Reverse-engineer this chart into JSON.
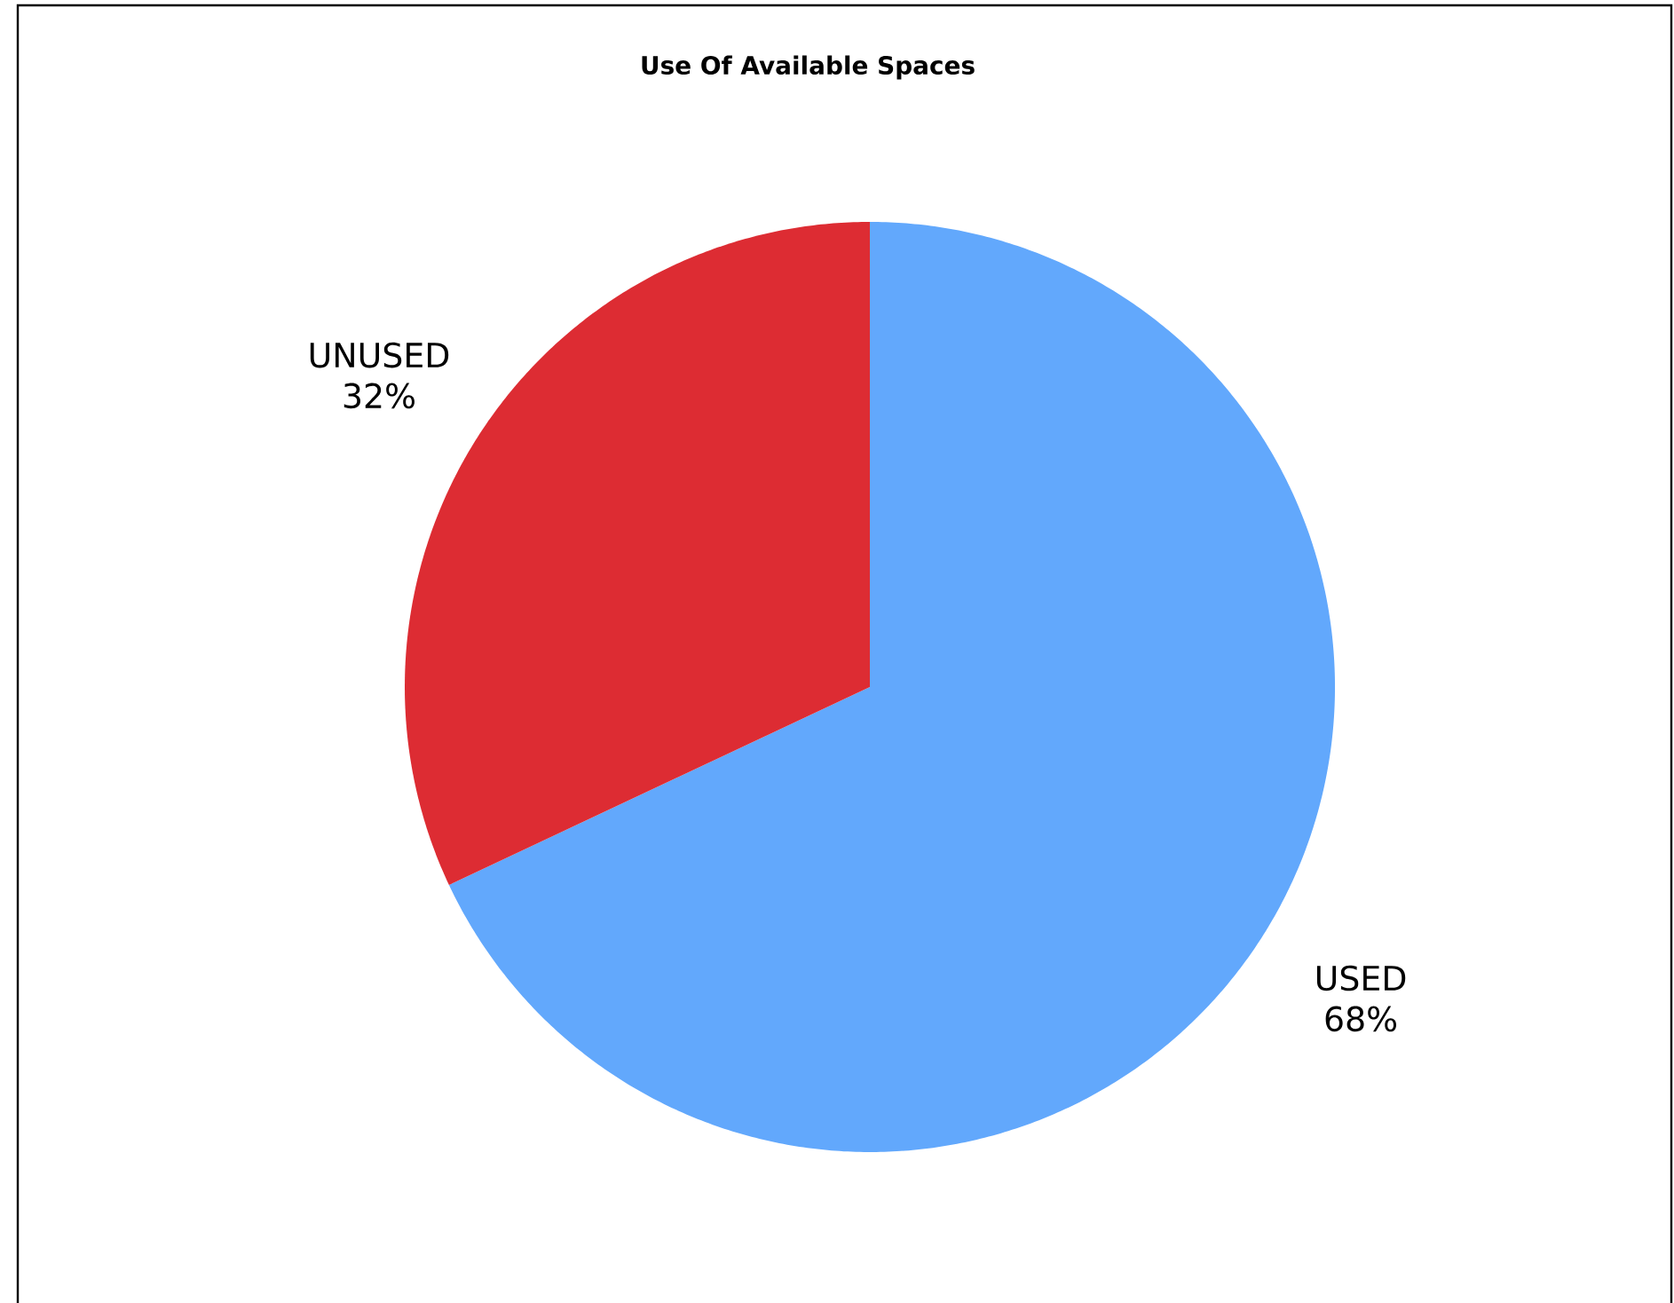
{
  "chart_data": {
    "type": "pie",
    "title": "Use Of Available Spaces",
    "categories": [
      "USED",
      "UNUSED"
    ],
    "values": [
      68,
      32
    ],
    "colors": [
      "#62a8fc",
      "#dd2c33"
    ],
    "value_labels": [
      "68%",
      "32%"
    ]
  }
}
